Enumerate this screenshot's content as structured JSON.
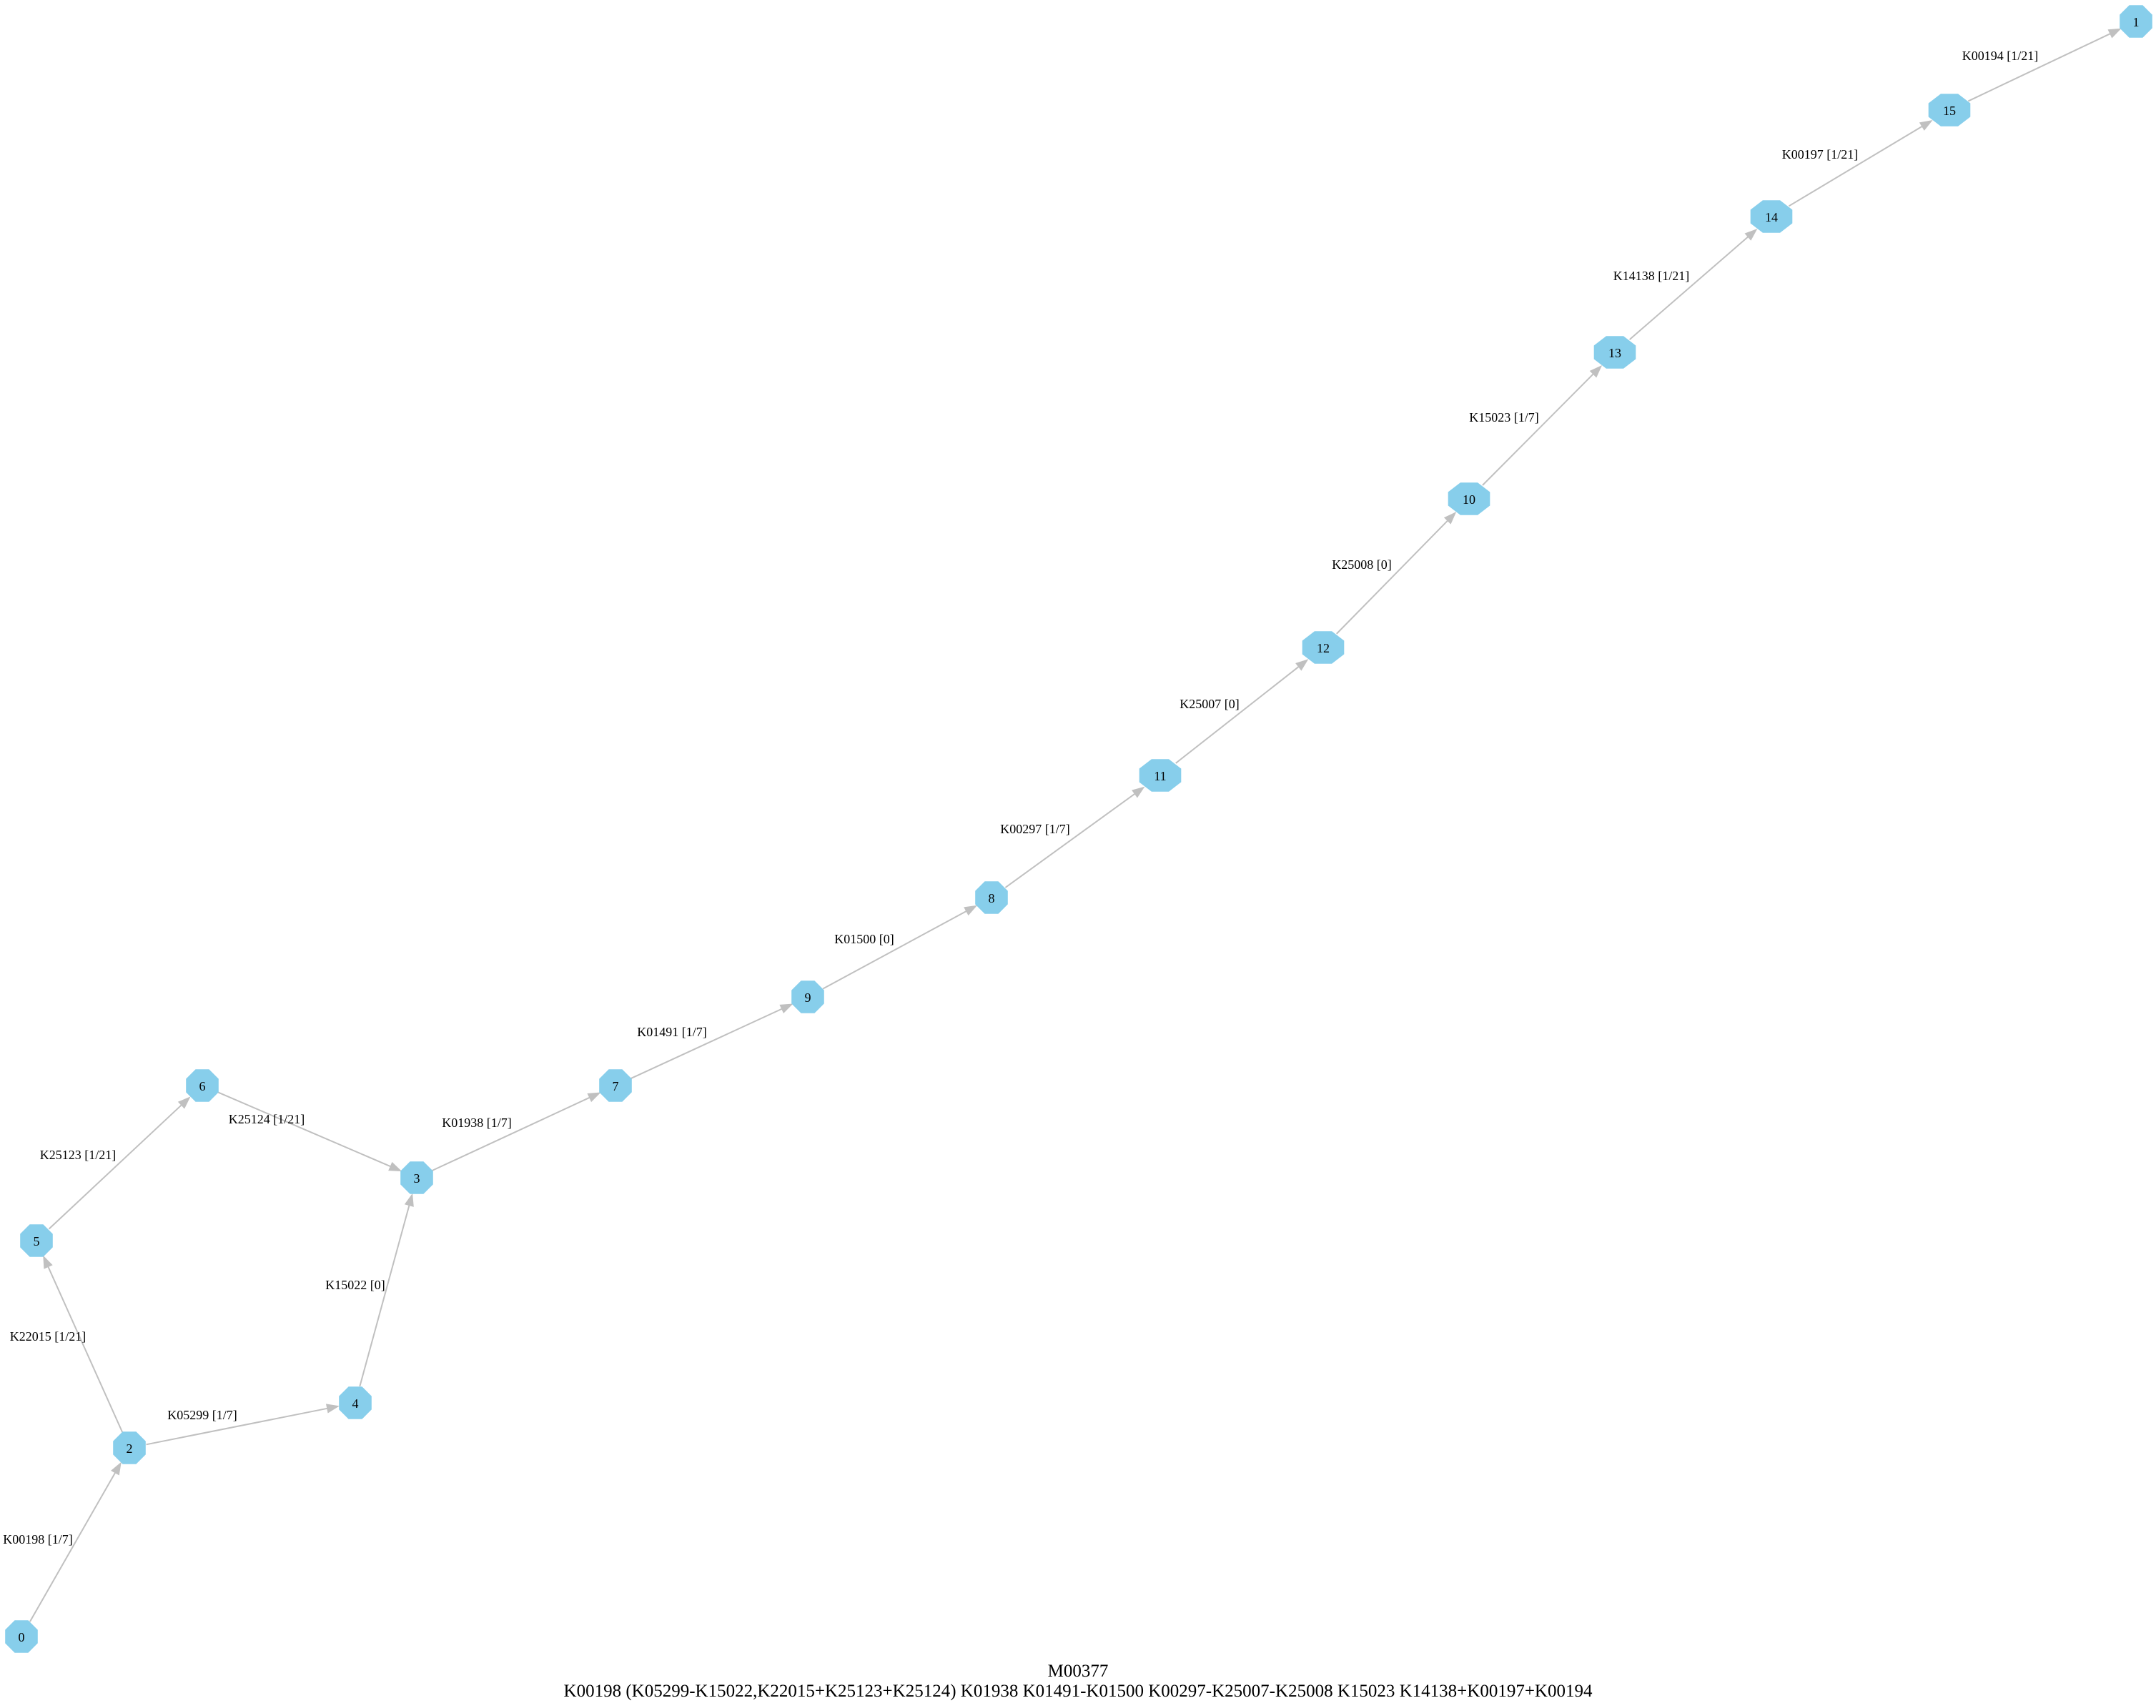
{
  "module_id": "M00377",
  "definition": "K00198 (K05299-K15022,K22015+K25123+K25124) K01938 K01491-K01500 K00297-K25007-K25008 K15023 K14138+K00197+K00194",
  "colors": {
    "node": "#87ceeb",
    "edge": "#c0c0c0"
  },
  "nodes": [
    "0",
    "1",
    "2",
    "3",
    "4",
    "5",
    "6",
    "7",
    "8",
    "9",
    "10",
    "11",
    "12",
    "13",
    "14",
    "15"
  ],
  "edges": [
    {
      "from": "0",
      "to": "2",
      "label": "K00198 [1/7]"
    },
    {
      "from": "2",
      "to": "4",
      "label": "K05299 [1/7]"
    },
    {
      "from": "4",
      "to": "3",
      "label": "K15022 [0]"
    },
    {
      "from": "2",
      "to": "5",
      "label": "K22015 [1/21]"
    },
    {
      "from": "5",
      "to": "6",
      "label": "K25123 [1/21]"
    },
    {
      "from": "6",
      "to": "3",
      "label": "K25124 [1/21]"
    },
    {
      "from": "3",
      "to": "7",
      "label": "K01938 [1/7]"
    },
    {
      "from": "7",
      "to": "9",
      "label": "K01491 [1/7]"
    },
    {
      "from": "9",
      "to": "8",
      "label": "K01500 [0]"
    },
    {
      "from": "8",
      "to": "11",
      "label": "K00297 [1/7]"
    },
    {
      "from": "11",
      "to": "12",
      "label": "K25007 [0]"
    },
    {
      "from": "12",
      "to": "10",
      "label": "K25008 [0]"
    },
    {
      "from": "10",
      "to": "13",
      "label": "K15023 [1/7]"
    },
    {
      "from": "13",
      "to": "14",
      "label": "K14138 [1/21]"
    },
    {
      "from": "14",
      "to": "15",
      "label": "K00197 [1/21]"
    },
    {
      "from": "15",
      "to": "1",
      "label": "K00194 [1/21]"
    }
  ]
}
